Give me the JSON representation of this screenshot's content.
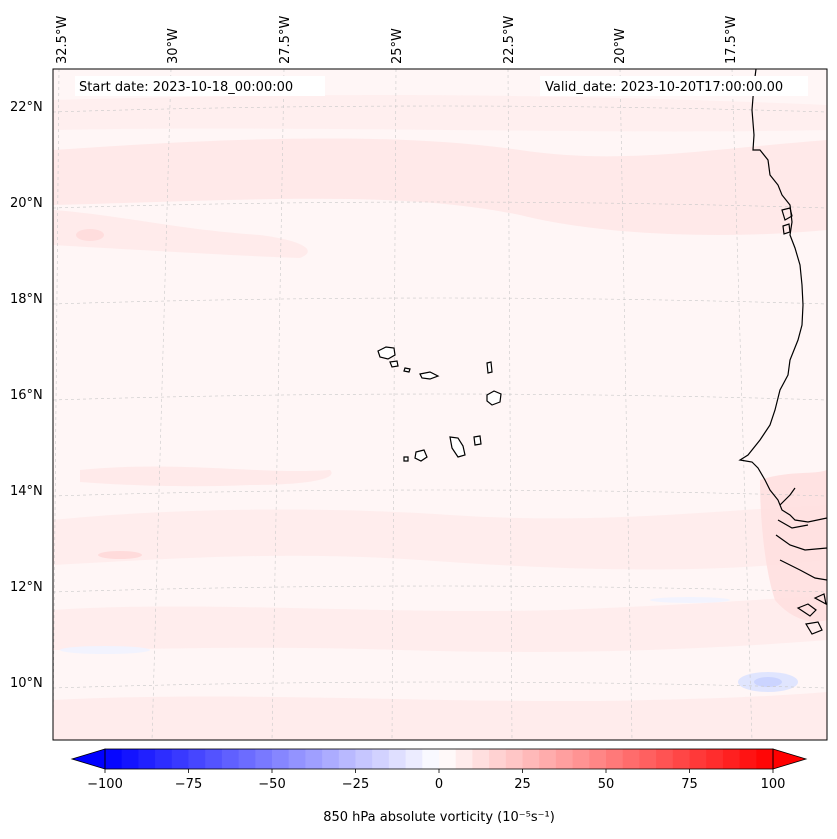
{
  "map": {
    "start_label": "Start date: 2023-10-18_00:00:00",
    "valid_label": "Valid_date: 2023-10-20T17:00:00.00",
    "lon_ticks": [
      "32.5°W",
      "30°W",
      "27.5°W",
      "25°W",
      "22.5°W",
      "20°W",
      "17.5°W"
    ],
    "lat_ticks": [
      "22°N",
      "20°N",
      "18°N",
      "16°N",
      "14°N",
      "12°N",
      "10°N"
    ],
    "gridline_style": "dashed",
    "land_color": "#ffffff",
    "coast_color": "#000000"
  },
  "colorbar": {
    "vmin": -100,
    "vmax": 100,
    "levels": 40,
    "colormap": "bwr",
    "tick_values": [
      -100,
      -75,
      -50,
      -25,
      0,
      25,
      50,
      75,
      100
    ],
    "tick_labels": [
      "−100",
      "−75",
      "−50",
      "−25",
      "0",
      "25",
      "50",
      "75",
      "100"
    ],
    "label": "850 hPa absolute vorticity (10⁻⁵s⁻¹)",
    "colors": {
      "negative": "#0000ff",
      "zero": "#ffffff",
      "positive": "#ff0000"
    }
  },
  "field": {
    "background_value": 2,
    "bands": [
      {
        "name": "northern-positive-band",
        "value": 12
      },
      {
        "name": "subtropical-weak-band",
        "value": 7
      },
      {
        "name": "equatorward-band",
        "value": 8
      },
      {
        "name": "southeast-negative-patch",
        "value": -15
      },
      {
        "name": "coastal-positive-patch",
        "value": 20
      }
    ]
  }
}
